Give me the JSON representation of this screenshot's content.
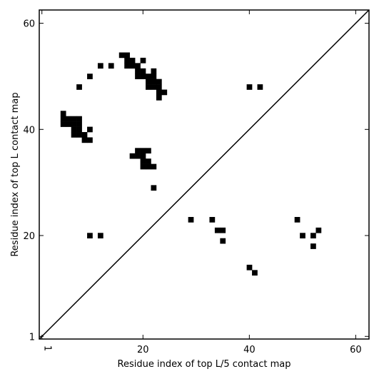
{
  "chart_data": {
    "type": "heatmap",
    "xlabel": "Residue index of top L/5 contact map",
    "ylabel": "Residue index of top L contact map",
    "xlim": [
      0.5,
      62.5
    ],
    "ylim": [
      0.5,
      62.5
    ],
    "x_ticks": [
      1,
      20,
      40,
      60
    ],
    "y_ticks": [
      1,
      20,
      40,
      60
    ],
    "x_tick_labels": [
      "1",
      "20",
      "40",
      "60"
    ],
    "y_tick_labels": [
      "1",
      "20",
      "40",
      "60"
    ],
    "x_tick_label_rotation": "vertical for 1 only",
    "diagonal_line": true,
    "cell_color": "#000000",
    "background_color": "#ffffff",
    "grid": false,
    "upper_left_contacts": [
      [
        5,
        43
      ],
      [
        5,
        42
      ],
      [
        6,
        42
      ],
      [
        7,
        42
      ],
      [
        8,
        42
      ],
      [
        5,
        41
      ],
      [
        6,
        41
      ],
      [
        7,
        41
      ],
      [
        8,
        41
      ],
      [
        7,
        40
      ],
      [
        8,
        40
      ],
      [
        7,
        39
      ],
      [
        8,
        39
      ],
      [
        9,
        39
      ],
      [
        9,
        38
      ],
      [
        10,
        38
      ],
      [
        10,
        40
      ],
      [
        8,
        48
      ],
      [
        10,
        50
      ],
      [
        12,
        52
      ],
      [
        14,
        52
      ],
      [
        16,
        54
      ],
      [
        17,
        54
      ],
      [
        17,
        53
      ],
      [
        18,
        53
      ],
      [
        17,
        52
      ],
      [
        18,
        52
      ],
      [
        19,
        52
      ],
      [
        20,
        53
      ],
      [
        19,
        51
      ],
      [
        20,
        51
      ],
      [
        19,
        50
      ],
      [
        20,
        50
      ],
      [
        21,
        50
      ],
      [
        21,
        49
      ],
      [
        22,
        49
      ],
      [
        23,
        49
      ],
      [
        21,
        48
      ],
      [
        22,
        48
      ],
      [
        23,
        48
      ],
      [
        22,
        51
      ],
      [
        22,
        50
      ],
      [
        23,
        47
      ],
      [
        24,
        47
      ],
      [
        23,
        46
      ],
      [
        18,
        35
      ],
      [
        19,
        35
      ],
      [
        20,
        35
      ],
      [
        19,
        36
      ],
      [
        20,
        36
      ],
      [
        21,
        36
      ],
      [
        20,
        34
      ],
      [
        21,
        34
      ],
      [
        20,
        33
      ],
      [
        21,
        33
      ],
      [
        22,
        33
      ],
      [
        22,
        29
      ],
      [
        10,
        20
      ],
      [
        12,
        20
      ],
      [
        40,
        48
      ],
      [
        42,
        48
      ]
    ],
    "lower_right_contacts": [
      [
        29,
        23
      ],
      [
        33,
        23
      ],
      [
        34,
        21
      ],
      [
        35,
        21
      ],
      [
        35,
        19
      ],
      [
        49,
        23
      ],
      [
        50,
        20
      ],
      [
        52,
        20
      ],
      [
        53,
        21
      ],
      [
        52,
        18
      ],
      [
        40,
        14
      ],
      [
        41,
        13
      ]
    ]
  }
}
